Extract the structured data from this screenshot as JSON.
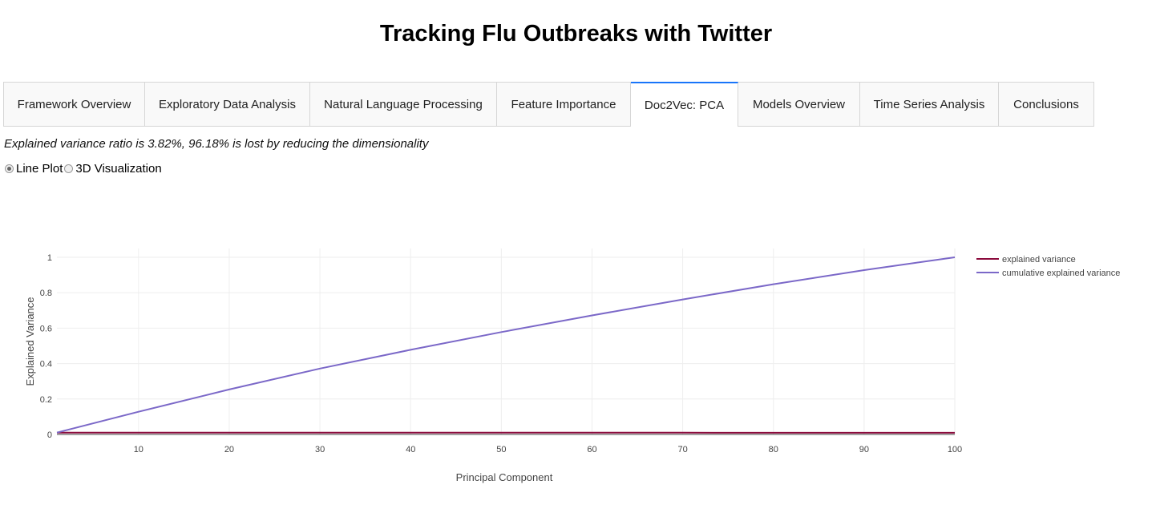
{
  "header": {
    "title": "Tracking Flu Outbreaks with Twitter"
  },
  "tabs": [
    {
      "label": "Framework Overview",
      "selected": false
    },
    {
      "label": "Exploratory Data Analysis",
      "selected": false
    },
    {
      "label": "Natural Language Processing",
      "selected": false
    },
    {
      "label": "Feature Importance",
      "selected": false
    },
    {
      "label": "Doc2Vec: PCA",
      "selected": true
    },
    {
      "label": "Models Overview",
      "selected": false
    },
    {
      "label": "Time Series Analysis",
      "selected": false
    },
    {
      "label": "Conclusions",
      "selected": false
    }
  ],
  "summary": {
    "text": "Explained variance ratio is 3.82%, 96.18% is lost by reducing the dimensionality"
  },
  "view_options": {
    "items": [
      {
        "label": "Line Plot",
        "checked": true
      },
      {
        "label": "3D Visualization",
        "checked": false
      }
    ]
  },
  "colors": {
    "explained": "#8b0a3c",
    "cumulative": "#7b68c8",
    "grid": "#eeeeee",
    "accent": "#1975fa"
  },
  "chart_data": {
    "type": "line",
    "xlabel": "Principal Component",
    "ylabel": "Explained Variance",
    "xlim": [
      1,
      100
    ],
    "ylim": [
      0,
      1.05
    ],
    "x_ticks": [
      10,
      20,
      30,
      40,
      50,
      60,
      70,
      80,
      90,
      100
    ],
    "y_ticks": [
      0,
      0.2,
      0.4,
      0.6,
      0.8,
      1
    ],
    "y_tick_labels": [
      "0",
      "0.2",
      "0.4",
      "0.6",
      "0.8",
      "1"
    ],
    "grid": true,
    "legend_position": "top-right",
    "series": [
      {
        "name": "explained variance",
        "x": [
          1,
          10,
          20,
          30,
          40,
          50,
          60,
          70,
          80,
          90,
          100
        ],
        "y": [
          0.0105,
          0.0104,
          0.0103,
          0.0102,
          0.0101,
          0.01,
          0.0099,
          0.0098,
          0.0097,
          0.0096,
          0.0095
        ]
      },
      {
        "name": "cumulative explained variance",
        "x": [
          1,
          10,
          20,
          30,
          40,
          50,
          60,
          70,
          80,
          90,
          100
        ],
        "y": [
          0.0105,
          0.128,
          0.254,
          0.372,
          0.478,
          0.578,
          0.672,
          0.762,
          0.848,
          0.928,
          1.0
        ]
      }
    ]
  }
}
